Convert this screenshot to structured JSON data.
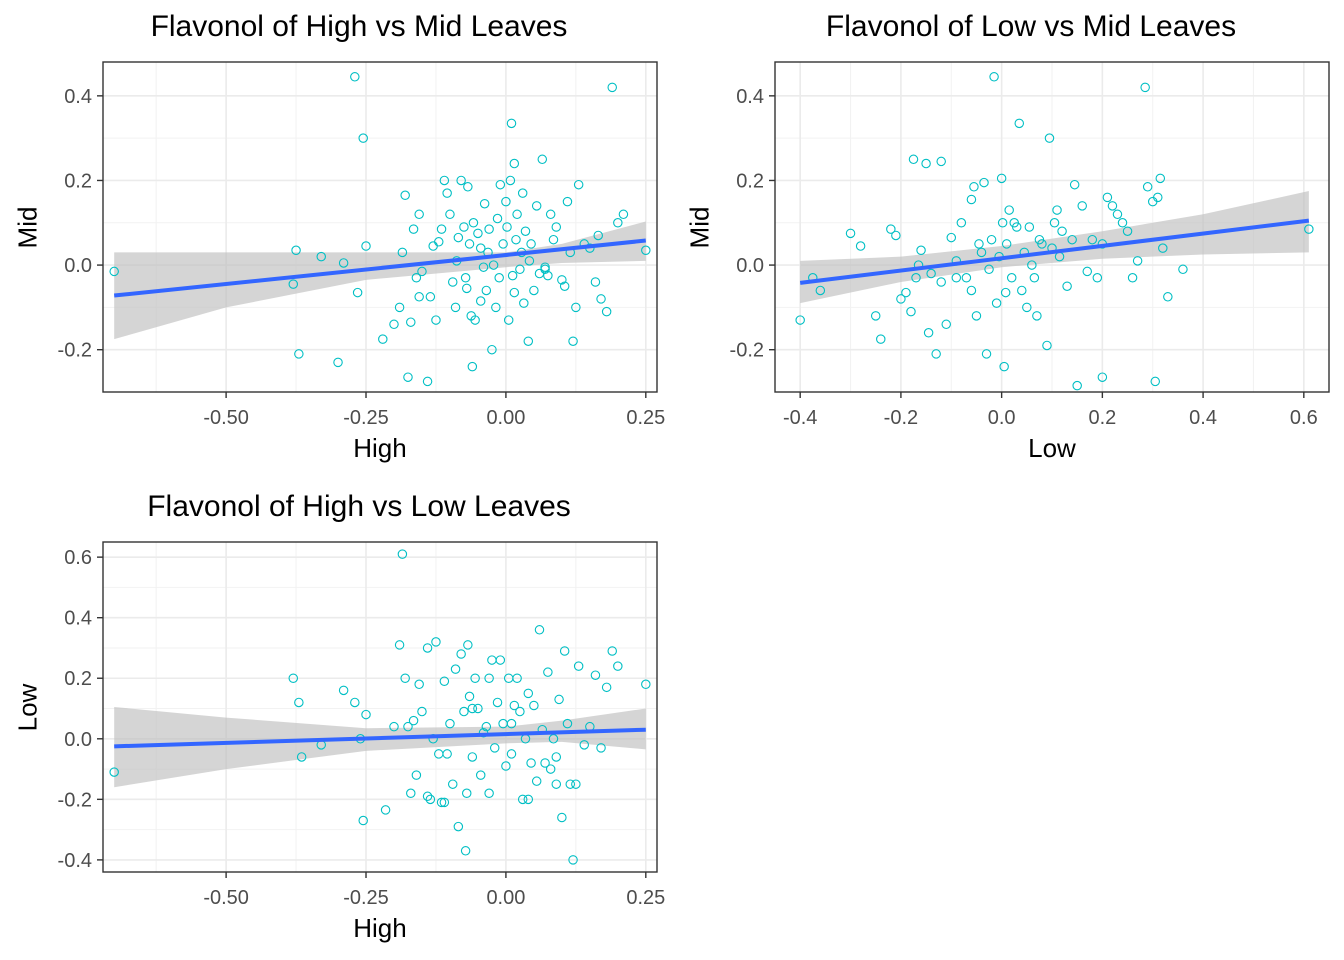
{
  "chart_data": [
    {
      "type": "scatter",
      "title": "Flavonol of High vs Mid Leaves",
      "xlabel": "High",
      "ylabel": "Mid",
      "xlim": [
        -0.72,
        0.27
      ],
      "ylim": [
        -0.3,
        0.48
      ],
      "xticks": [
        -0.5,
        -0.25,
        0.0,
        0.25
      ],
      "xtick_labels": [
        "-0.50",
        "-0.25",
        "0.00",
        "0.25"
      ],
      "yticks": [
        -0.2,
        0.0,
        0.2,
        0.4
      ],
      "ytick_labels": [
        "-0.2",
        "0.0",
        "0.2",
        "0.4"
      ],
      "grid": true,
      "point_color": "#00BFC4",
      "fit_line_color": "#3366FF",
      "ribbon_color": "#BEBEBE",
      "fit_line": {
        "x": [
          -0.7,
          0.25
        ],
        "y": [
          -0.072,
          0.058
        ]
      },
      "ribbon": {
        "x": [
          -0.7,
          -0.5,
          -0.25,
          0.0,
          0.1,
          0.25
        ],
        "lower": [
          -0.175,
          -0.1,
          -0.035,
          -0.005,
          0.005,
          0.01
        ],
        "upper": [
          0.03,
          0.03,
          0.03,
          0.03,
          0.05,
          0.103
        ]
      },
      "points": [
        [
          -0.7,
          -0.015
        ],
        [
          -0.38,
          -0.045
        ],
        [
          -0.375,
          0.035
        ],
        [
          -0.37,
          -0.21
        ],
        [
          -0.33,
          0.02
        ],
        [
          -0.3,
          -0.23
        ],
        [
          -0.29,
          0.005
        ],
        [
          -0.27,
          0.445
        ],
        [
          -0.265,
          -0.065
        ],
        [
          -0.255,
          0.3
        ],
        [
          -0.25,
          0.045
        ],
        [
          -0.22,
          -0.175
        ],
        [
          -0.2,
          -0.14
        ],
        [
          -0.19,
          -0.1
        ],
        [
          -0.185,
          0.03
        ],
        [
          -0.18,
          0.165
        ],
        [
          -0.175,
          -0.265
        ],
        [
          -0.17,
          -0.135
        ],
        [
          -0.165,
          0.085
        ],
        [
          -0.16,
          -0.03
        ],
        [
          -0.155,
          0.12
        ],
        [
          -0.15,
          -0.015
        ],
        [
          -0.14,
          -0.275
        ],
        [
          -0.135,
          -0.075
        ],
        [
          -0.13,
          0.045
        ],
        [
          -0.12,
          0.055
        ],
        [
          -0.125,
          -0.13
        ],
        [
          -0.115,
          0.085
        ],
        [
          -0.11,
          0.2
        ],
        [
          -0.105,
          0.17
        ],
        [
          -0.1,
          0.12
        ],
        [
          -0.095,
          -0.04
        ],
        [
          -0.09,
          -0.1
        ],
        [
          -0.088,
          0.01
        ],
        [
          -0.085,
          0.065
        ],
        [
          -0.08,
          0.2
        ],
        [
          -0.075,
          0.09
        ],
        [
          -0.072,
          -0.03
        ],
        [
          -0.07,
          -0.055
        ],
        [
          -0.068,
          0.185
        ],
        [
          -0.065,
          0.05
        ],
        [
          -0.062,
          -0.12
        ],
        [
          -0.06,
          -0.24
        ],
        [
          -0.058,
          0.1
        ],
        [
          -0.055,
          -0.13
        ],
        [
          -0.05,
          0.075
        ],
        [
          -0.045,
          0.04
        ],
        [
          -0.04,
          -0.005
        ],
        [
          -0.038,
          0.145
        ],
        [
          -0.035,
          -0.06
        ],
        [
          -0.032,
          0.03
        ],
        [
          -0.03,
          0.085
        ],
        [
          -0.025,
          -0.2
        ],
        [
          -0.022,
          0.0
        ],
        [
          -0.018,
          -0.1
        ],
        [
          -0.015,
          0.11
        ],
        [
          -0.012,
          -0.03
        ],
        [
          -0.01,
          0.19
        ],
        [
          -0.005,
          0.05
        ],
        [
          0.0,
          0.15
        ],
        [
          0.002,
          0.09
        ],
        [
          0.005,
          -0.13
        ],
        [
          0.008,
          0.2
        ],
        [
          0.01,
          0.335
        ],
        [
          0.012,
          -0.025
        ],
        [
          0.015,
          0.24
        ],
        [
          0.018,
          0.06
        ],
        [
          0.02,
          0.12
        ],
        [
          0.025,
          -0.01
        ],
        [
          0.028,
          0.03
        ],
        [
          0.03,
          0.17
        ],
        [
          0.032,
          -0.09
        ],
        [
          0.035,
          0.08
        ],
        [
          0.04,
          -0.18
        ],
        [
          0.042,
          0.01
        ],
        [
          0.045,
          0.05
        ],
        [
          0.05,
          -0.06
        ],
        [
          0.055,
          0.14
        ],
        [
          0.06,
          -0.02
        ],
        [
          0.065,
          0.25
        ],
        [
          0.07,
          -0.01
        ],
        [
          0.075,
          -0.025
        ],
        [
          0.08,
          0.12
        ],
        [
          0.085,
          0.06
        ],
        [
          0.09,
          0.09
        ],
        [
          0.1,
          -0.035
        ],
        [
          0.105,
          -0.05
        ],
        [
          0.11,
          0.15
        ],
        [
          0.115,
          0.03
        ],
        [
          0.12,
          -0.18
        ],
        [
          0.125,
          -0.1
        ],
        [
          0.13,
          0.19
        ],
        [
          0.14,
          0.05
        ],
        [
          0.15,
          0.04
        ],
        [
          0.16,
          -0.04
        ],
        [
          0.165,
          0.07
        ],
        [
          0.17,
          -0.08
        ],
        [
          0.18,
          -0.11
        ],
        [
          0.19,
          0.42
        ],
        [
          0.2,
          0.1
        ],
        [
          0.21,
          0.12
        ],
        [
          0.25,
          0.035
        ],
        [
          -0.045,
          -0.085
        ],
        [
          0.015,
          -0.065
        ],
        [
          -0.155,
          -0.075
        ],
        [
          0.07,
          -0.005
        ]
      ]
    },
    {
      "type": "scatter",
      "title": "Flavonol of Low vs Mid Leaves",
      "xlabel": "Low",
      "ylabel": "Mid",
      "xlim": [
        -0.45,
        0.65
      ],
      "ylim": [
        -0.3,
        0.48
      ],
      "xticks": [
        -0.4,
        -0.2,
        0.0,
        0.2,
        0.4,
        0.6
      ],
      "xtick_labels": [
        "-0.4",
        "-0.2",
        "0.0",
        "0.2",
        "0.4",
        "0.6"
      ],
      "yticks": [
        -0.2,
        0.0,
        0.2,
        0.4
      ],
      "ytick_labels": [
        "-0.2",
        "0.0",
        "0.2",
        "0.4"
      ],
      "grid": true,
      "point_color": "#00BFC4",
      "fit_line_color": "#3366FF",
      "ribbon_color": "#BEBEBE",
      "fit_line": {
        "x": [
          -0.4,
          0.61
        ],
        "y": [
          -0.042,
          0.105
        ]
      },
      "ribbon": {
        "x": [
          -0.4,
          -0.2,
          0.0,
          0.2,
          0.4,
          0.61
        ],
        "lower": [
          -0.09,
          -0.04,
          -0.005,
          0.015,
          0.025,
          0.03
        ],
        "upper": [
          0.01,
          0.02,
          0.045,
          0.08,
          0.12,
          0.175
        ]
      },
      "points": [
        [
          -0.4,
          -0.13
        ],
        [
          -0.375,
          -0.03
        ],
        [
          -0.36,
          -0.06
        ],
        [
          -0.3,
          0.075
        ],
        [
          -0.28,
          0.045
        ],
        [
          -0.25,
          -0.12
        ],
        [
          -0.24,
          -0.175
        ],
        [
          -0.22,
          0.085
        ],
        [
          -0.21,
          0.07
        ],
        [
          -0.2,
          -0.08
        ],
        [
          -0.19,
          -0.065
        ],
        [
          -0.18,
          -0.11
        ],
        [
          -0.175,
          0.25
        ],
        [
          -0.17,
          -0.03
        ],
        [
          -0.165,
          0.0
        ],
        [
          -0.16,
          0.035
        ],
        [
          -0.15,
          0.24
        ],
        [
          -0.145,
          -0.16
        ],
        [
          -0.14,
          -0.02
        ],
        [
          -0.13,
          -0.21
        ],
        [
          -0.12,
          0.245
        ],
        [
          -0.11,
          -0.14
        ],
        [
          -0.1,
          0.065
        ],
        [
          -0.09,
          0.01
        ],
        [
          -0.08,
          0.1
        ],
        [
          -0.07,
          -0.03
        ],
        [
          -0.06,
          0.155
        ],
        [
          -0.055,
          0.185
        ],
        [
          -0.05,
          -0.12
        ],
        [
          -0.045,
          0.05
        ],
        [
          -0.04,
          0.03
        ],
        [
          -0.035,
          0.195
        ],
        [
          -0.03,
          -0.21
        ],
        [
          -0.025,
          -0.01
        ],
        [
          -0.02,
          0.06
        ],
        [
          -0.015,
          0.445
        ],
        [
          -0.01,
          -0.09
        ],
        [
          -0.005,
          0.02
        ],
        [
          0.0,
          0.205
        ],
        [
          0.002,
          0.1
        ],
        [
          0.005,
          -0.24
        ],
        [
          0.008,
          -0.065
        ],
        [
          0.01,
          0.05
        ],
        [
          0.015,
          0.13
        ],
        [
          0.02,
          -0.03
        ],
        [
          0.025,
          0.1
        ],
        [
          0.03,
          0.09
        ],
        [
          0.035,
          0.335
        ],
        [
          0.04,
          -0.06
        ],
        [
          0.045,
          0.03
        ],
        [
          0.05,
          -0.1
        ],
        [
          0.055,
          0.09
        ],
        [
          0.06,
          0.0
        ],
        [
          0.065,
          -0.03
        ],
        [
          0.07,
          -0.12
        ],
        [
          0.075,
          0.06
        ],
        [
          0.08,
          0.05
        ],
        [
          0.09,
          -0.19
        ],
        [
          0.095,
          0.3
        ],
        [
          0.1,
          0.04
        ],
        [
          0.105,
          0.1
        ],
        [
          0.11,
          0.13
        ],
        [
          0.115,
          0.02
        ],
        [
          0.12,
          0.08
        ],
        [
          0.13,
          -0.05
        ],
        [
          0.14,
          0.06
        ],
        [
          0.145,
          0.19
        ],
        [
          0.15,
          -0.285
        ],
        [
          0.16,
          0.14
        ],
        [
          0.17,
          -0.015
        ],
        [
          0.18,
          0.06
        ],
        [
          0.19,
          -0.03
        ],
        [
          0.2,
          0.05
        ],
        [
          0.21,
          0.16
        ],
        [
          0.22,
          0.14
        ],
        [
          0.23,
          0.12
        ],
        [
          0.24,
          0.1
        ],
        [
          0.25,
          0.08
        ],
        [
          0.26,
          -0.03
        ],
        [
          0.27,
          0.01
        ],
        [
          0.285,
          0.42
        ],
        [
          0.29,
          0.185
        ],
        [
          0.3,
          0.15
        ],
        [
          0.305,
          -0.275
        ],
        [
          0.31,
          0.16
        ],
        [
          0.315,
          0.205
        ],
        [
          0.32,
          0.04
        ],
        [
          0.33,
          -0.075
        ],
        [
          0.36,
          -0.01
        ],
        [
          0.61,
          0.085
        ],
        [
          -0.12,
          -0.04
        ],
        [
          -0.06,
          -0.06
        ],
        [
          0.2,
          -0.265
        ],
        [
          -0.09,
          -0.03
        ]
      ]
    },
    {
      "type": "scatter",
      "title": "Flavonol of High vs Low Leaves",
      "xlabel": "High",
      "ylabel": "Low",
      "xlim": [
        -0.72,
        0.27
      ],
      "ylim": [
        -0.44,
        0.65
      ],
      "xticks": [
        -0.5,
        -0.25,
        0.0,
        0.25
      ],
      "xtick_labels": [
        "-0.50",
        "-0.25",
        "0.00",
        "0.25"
      ],
      "yticks": [
        -0.4,
        -0.2,
        0.0,
        0.2,
        0.4,
        0.6
      ],
      "ytick_labels": [
        "-0.4",
        "-0.2",
        "0.0",
        "0.2",
        "0.4",
        "0.6"
      ],
      "grid": true,
      "point_color": "#00BFC4",
      "fit_line_color": "#3366FF",
      "ribbon_color": "#BEBEBE",
      "fit_line": {
        "x": [
          -0.7,
          0.25
        ],
        "y": [
          -0.025,
          0.03
        ]
      },
      "ribbon": {
        "x": [
          -0.7,
          -0.5,
          -0.25,
          0.0,
          0.1,
          0.25
        ],
        "lower": [
          -0.16,
          -0.1,
          -0.04,
          -0.015,
          -0.01,
          -0.035
        ],
        "upper": [
          0.105,
          0.07,
          0.035,
          0.04,
          0.06,
          0.1
        ]
      },
      "points": [
        [
          -0.7,
          -0.11
        ],
        [
          -0.38,
          0.2
        ],
        [
          -0.37,
          0.12
        ],
        [
          -0.365,
          -0.06
        ],
        [
          -0.33,
          -0.02
        ],
        [
          -0.29,
          0.16
        ],
        [
          -0.27,
          0.12
        ],
        [
          -0.26,
          0.0
        ],
        [
          -0.255,
          -0.27
        ],
        [
          -0.25,
          0.08
        ],
        [
          -0.215,
          -0.235
        ],
        [
          -0.2,
          0.04
        ],
        [
          -0.19,
          0.31
        ],
        [
          -0.185,
          0.61
        ],
        [
          -0.18,
          0.2
        ],
        [
          -0.175,
          0.04
        ],
        [
          -0.17,
          -0.18
        ],
        [
          -0.165,
          0.06
        ],
        [
          -0.16,
          -0.12
        ],
        [
          -0.155,
          0.18
        ],
        [
          -0.15,
          0.09
        ],
        [
          -0.14,
          0.3
        ],
        [
          -0.135,
          -0.2
        ],
        [
          -0.13,
          0.0
        ],
        [
          -0.125,
          0.32
        ],
        [
          -0.12,
          -0.05
        ],
        [
          -0.115,
          -0.21
        ],
        [
          -0.11,
          0.19
        ],
        [
          -0.105,
          -0.05
        ],
        [
          -0.1,
          0.05
        ],
        [
          -0.095,
          -0.15
        ],
        [
          -0.09,
          0.23
        ],
        [
          -0.085,
          -0.29
        ],
        [
          -0.08,
          0.28
        ],
        [
          -0.075,
          0.09
        ],
        [
          -0.072,
          -0.37
        ],
        [
          -0.07,
          -0.18
        ],
        [
          -0.068,
          0.31
        ],
        [
          -0.065,
          0.14
        ],
        [
          -0.06,
          -0.06
        ],
        [
          -0.055,
          0.2
        ],
        [
          -0.05,
          0.1
        ],
        [
          -0.045,
          -0.12
        ],
        [
          -0.04,
          0.02
        ],
        [
          -0.035,
          0.04
        ],
        [
          -0.03,
          -0.18
        ],
        [
          -0.025,
          0.26
        ],
        [
          -0.02,
          -0.03
        ],
        [
          -0.015,
          0.12
        ],
        [
          -0.01,
          0.26
        ],
        [
          -0.005,
          0.05
        ],
        [
          0.0,
          -0.09
        ],
        [
          0.005,
          0.2
        ],
        [
          0.01,
          -0.05
        ],
        [
          0.015,
          0.11
        ],
        [
          0.02,
          0.2
        ],
        [
          0.025,
          0.09
        ],
        [
          0.03,
          -0.2
        ],
        [
          0.035,
          0.0
        ],
        [
          0.04,
          0.15
        ],
        [
          0.045,
          -0.08
        ],
        [
          0.05,
          0.11
        ],
        [
          0.055,
          -0.14
        ],
        [
          0.06,
          0.36
        ],
        [
          0.065,
          0.03
        ],
        [
          0.07,
          -0.08
        ],
        [
          0.075,
          0.22
        ],
        [
          0.08,
          -0.1
        ],
        [
          0.085,
          0.0
        ],
        [
          0.09,
          -0.15
        ],
        [
          0.095,
          0.13
        ],
        [
          0.1,
          -0.26
        ],
        [
          0.105,
          0.29
        ],
        [
          0.11,
          0.05
        ],
        [
          0.115,
          -0.15
        ],
        [
          0.12,
          -0.4
        ],
        [
          0.125,
          -0.15
        ],
        [
          0.13,
          0.24
        ],
        [
          0.14,
          -0.02
        ],
        [
          0.15,
          0.04
        ],
        [
          0.16,
          0.21
        ],
        [
          0.17,
          -0.03
        ],
        [
          0.18,
          0.17
        ],
        [
          0.19,
          0.29
        ],
        [
          0.2,
          0.24
        ],
        [
          0.25,
          0.18
        ],
        [
          -0.11,
          -0.21
        ],
        [
          -0.06,
          0.1
        ],
        [
          0.01,
          0.05
        ],
        [
          0.09,
          -0.06
        ],
        [
          -0.14,
          -0.19
        ],
        [
          0.04,
          -0.2
        ],
        [
          -0.03,
          0.2
        ]
      ]
    }
  ]
}
